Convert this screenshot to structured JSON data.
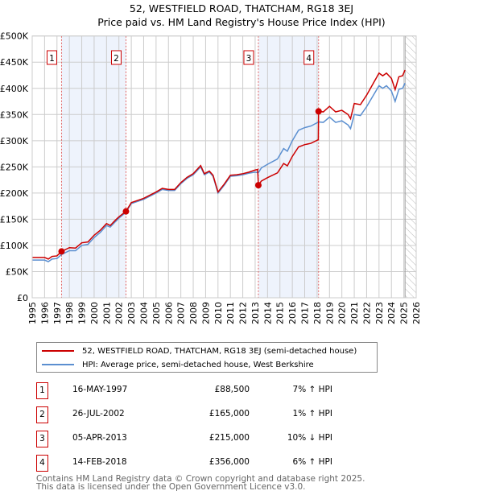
{
  "chart_data": {
    "type": "line",
    "title": "52, WESTFIELD ROAD, THATCHAM, RG18 3EJ",
    "subtitle": "Price paid vs. HM Land Registry's House Price Index (HPI)",
    "xlim": [
      1995,
      2026
    ],
    "ylim": [
      0,
      500
    ],
    "x_ticks": [
      "1995",
      "1996",
      "1997",
      "1998",
      "1999",
      "2000",
      "2001",
      "2002",
      "2003",
      "2004",
      "2005",
      "2006",
      "2007",
      "2008",
      "2009",
      "2010",
      "2011",
      "2012",
      "2013",
      "2014",
      "2015",
      "2016",
      "2017",
      "2018",
      "2019",
      "2020",
      "2021",
      "2022",
      "2023",
      "2024",
      "2025",
      "2026"
    ],
    "y_ticks": [
      {
        "v": 0,
        "label": "£0"
      },
      {
        "v": 50,
        "label": "£50K"
      },
      {
        "v": 100,
        "label": "£100K"
      },
      {
        "v": 150,
        "label": "£150K"
      },
      {
        "v": 200,
        "label": "£200K"
      },
      {
        "v": 250,
        "label": "£250K"
      },
      {
        "v": 300,
        "label": "£300K"
      },
      {
        "v": 350,
        "label": "£350K"
      },
      {
        "v": 400,
        "label": "£400K"
      },
      {
        "v": 450,
        "label": "£450K"
      },
      {
        "v": 500,
        "label": "£500K"
      }
    ],
    "grid": true,
    "colors": {
      "property": "#cc0000",
      "hpi": "#5b8fd0",
      "shade": "#eef3fc",
      "sale_line": "#e06060"
    },
    "series": [
      {
        "name": "52, WESTFIELD ROAD, THATCHAM, RG18 3EJ (semi-detached house)",
        "key": "property",
        "points": [
          [
            1995,
            77
          ],
          [
            1995.5,
            77
          ],
          [
            1996,
            77
          ],
          [
            1996.3,
            74
          ],
          [
            1996.6,
            79
          ],
          [
            1997,
            80
          ],
          [
            1997.37,
            88.5
          ],
          [
            1998,
            95.7
          ],
          [
            1998.5,
            95
          ],
          [
            1999,
            105
          ],
          [
            1999.5,
            106.6
          ],
          [
            2000,
            119.5
          ],
          [
            2000.5,
            129
          ],
          [
            2001,
            141.7
          ],
          [
            2001.3,
            138
          ],
          [
            2001.7,
            147.8
          ],
          [
            2002,
            154.6
          ],
          [
            2002.57,
            165
          ],
          [
            2003,
            181.8
          ],
          [
            2004,
            189.9
          ],
          [
            2005,
            202
          ],
          [
            2005.5,
            209
          ],
          [
            2006,
            207
          ],
          [
            2006.5,
            207
          ],
          [
            2007,
            220
          ],
          [
            2007.5,
            230
          ],
          [
            2008,
            237
          ],
          [
            2008.6,
            252.5
          ],
          [
            2008.9,
            237
          ],
          [
            2009.3,
            242
          ],
          [
            2009.6,
            234
          ],
          [
            2010,
            202
          ],
          [
            2010.5,
            217
          ],
          [
            2011,
            234
          ],
          [
            2011.5,
            235
          ],
          [
            2012,
            237
          ],
          [
            2012.5,
            240
          ],
          [
            2013,
            244
          ],
          [
            2013.2,
            245
          ],
          [
            2013.26,
            215
          ],
          [
            2013.5,
            223
          ],
          [
            2014,
            229.5
          ],
          [
            2014.8,
            238.5
          ],
          [
            2015.3,
            256.5
          ],
          [
            2015.6,
            252
          ],
          [
            2016,
            270
          ],
          [
            2016.5,
            288
          ],
          [
            2017,
            292.5
          ],
          [
            2017.5,
            295
          ],
          [
            2018.1,
            302
          ],
          [
            2018.12,
            356
          ],
          [
            2018.5,
            355
          ],
          [
            2019,
            365.7
          ],
          [
            2019.5,
            355
          ],
          [
            2020,
            358
          ],
          [
            2020.5,
            350
          ],
          [
            2020.7,
            342
          ],
          [
            2021,
            371
          ],
          [
            2021.5,
            369
          ],
          [
            2022,
            387
          ],
          [
            2022.5,
            408
          ],
          [
            2023,
            429
          ],
          [
            2023.3,
            424
          ],
          [
            2023.6,
            429
          ],
          [
            2024,
            419
          ],
          [
            2024.3,
            397.5
          ],
          [
            2024.6,
            422
          ],
          [
            2024.9,
            424
          ],
          [
            2025.1,
            435
          ]
        ]
      },
      {
        "name": "HPI: Average price, semi-detached house, West Berkshire",
        "key": "hpi",
        "points": [
          [
            1995,
            72
          ],
          [
            1995.5,
            72
          ],
          [
            1996,
            72
          ],
          [
            1996.3,
            69
          ],
          [
            1996.6,
            74
          ],
          [
            1997,
            75
          ],
          [
            1997.37,
            82.7
          ],
          [
            1998,
            90
          ],
          [
            1998.5,
            90
          ],
          [
            1999,
            100
          ],
          [
            1999.5,
            102
          ],
          [
            2000,
            115
          ],
          [
            2000.5,
            125
          ],
          [
            2001,
            138
          ],
          [
            2001.3,
            135
          ],
          [
            2001.7,
            145
          ],
          [
            2002,
            152
          ],
          [
            2002.57,
            163.4
          ],
          [
            2003,
            180
          ],
          [
            2004,
            188
          ],
          [
            2005,
            200
          ],
          [
            2005.5,
            207
          ],
          [
            2006,
            205
          ],
          [
            2006.5,
            205
          ],
          [
            2007,
            218
          ],
          [
            2007.5,
            228
          ],
          [
            2008,
            235
          ],
          [
            2008.6,
            250
          ],
          [
            2008.9,
            235
          ],
          [
            2009.3,
            240
          ],
          [
            2009.6,
            232
          ],
          [
            2010,
            200
          ],
          [
            2010.5,
            215
          ],
          [
            2011,
            232
          ],
          [
            2011.5,
            233
          ],
          [
            2012,
            235
          ],
          [
            2012.5,
            238
          ],
          [
            2013,
            240
          ],
          [
            2013.26,
            238.9
          ],
          [
            2013.5,
            248
          ],
          [
            2014,
            255
          ],
          [
            2014.8,
            265
          ],
          [
            2015.3,
            285
          ],
          [
            2015.6,
            280
          ],
          [
            2016,
            300
          ],
          [
            2016.5,
            320
          ],
          [
            2017,
            325
          ],
          [
            2017.5,
            328
          ],
          [
            2018.12,
            335.8
          ],
          [
            2018.5,
            335
          ],
          [
            2019,
            345
          ],
          [
            2019.5,
            335
          ],
          [
            2020,
            338
          ],
          [
            2020.5,
            330
          ],
          [
            2020.7,
            323
          ],
          [
            2021,
            350
          ],
          [
            2021.5,
            348
          ],
          [
            2022,
            365
          ],
          [
            2022.5,
            385
          ],
          [
            2023,
            405
          ],
          [
            2023.3,
            400
          ],
          [
            2023.6,
            405
          ],
          [
            2024,
            395
          ],
          [
            2024.3,
            375
          ],
          [
            2024.6,
            398
          ],
          [
            2024.9,
            400
          ],
          [
            2025.1,
            410
          ]
        ]
      }
    ],
    "sales": [
      {
        "id": "1",
        "x": 1997.37,
        "price": 88.5
      },
      {
        "id": "2",
        "x": 2002.57,
        "price": 165
      },
      {
        "id": "3",
        "x": 2013.26,
        "price": 215
      },
      {
        "id": "4",
        "x": 2018.12,
        "price": 356
      }
    ],
    "shaded_ranges": [
      [
        1997.37,
        2002.57
      ],
      [
        2013.26,
        2018.12
      ]
    ],
    "forecast_hatch_from": 2025.1
  },
  "legend": {
    "property": "52, WESTFIELD ROAD, THATCHAM, RG18 3EJ (semi-detached house)",
    "hpi": "HPI: Average price, semi-detached house, West Berkshire"
  },
  "transactions": [
    {
      "id": "1",
      "date": "16-MAY-1997",
      "price": "£88,500",
      "delta": "7% ↑ HPI"
    },
    {
      "id": "2",
      "date": "26-JUL-2002",
      "price": "£165,000",
      "delta": "1% ↑ HPI"
    },
    {
      "id": "3",
      "date": "05-APR-2013",
      "price": "£215,000",
      "delta": "10% ↓ HPI"
    },
    {
      "id": "4",
      "date": "14-FEB-2018",
      "price": "£356,000",
      "delta": "6% ↑ HPI"
    }
  ],
  "footer": {
    "line1": "Contains HM Land Registry data © Crown copyright and database right 2025.",
    "line2": "This data is licensed under the Open Government Licence v3.0."
  }
}
